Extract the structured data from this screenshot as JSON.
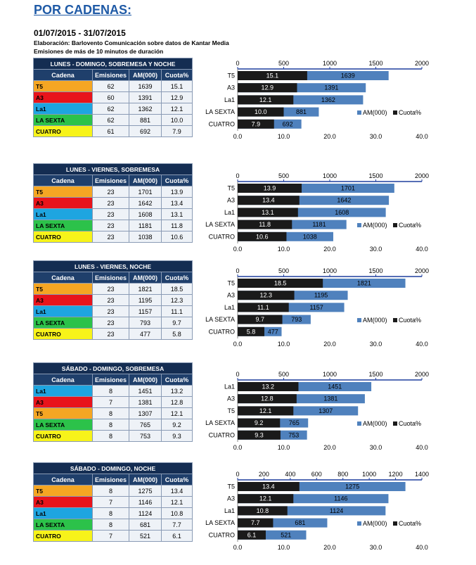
{
  "title": "POR CADENAS:",
  "date_range": "01/07/2015 - 31/07/2015",
  "credit": "Elaboración: Barlovento Comunicación sobre datos de Kantar Media",
  "subnote": "Emisiones de más de 10 minutos de duración",
  "table_headers": [
    "Cadena",
    "Emisiones",
    "AM(000)",
    "Cuota%"
  ],
  "colors": {
    "T5": "#f5a623",
    "A3": "#e8141b",
    "La1": "#1ea5e0",
    "LA SEXTA": "#2cc24a",
    "CUATRO": "#f7f31a",
    "bar_am": "#4f81bd",
    "bar_cuota": "#1a1a1a",
    "header_dark": "#142d52",
    "header": "#1f3f6b"
  },
  "sections": [
    {
      "title": "LUNES - DOMINGO, SOBREMESA Y NOCHE",
      "rows": [
        {
          "cadena": "T5",
          "emisiones": "62",
          "am": "1639",
          "cuota": "15.1"
        },
        {
          "cadena": "A3",
          "emisiones": "60",
          "am": "1391",
          "cuota": "12.9"
        },
        {
          "cadena": "La1",
          "emisiones": "62",
          "am": "1362",
          "cuota": "12.1"
        },
        {
          "cadena": "LA SEXTA",
          "emisiones": "62",
          "am": "881",
          "cuota": "10.0"
        },
        {
          "cadena": "CUATRO",
          "emisiones": "61",
          "am": "692",
          "cuota": "7.9"
        }
      ]
    },
    {
      "title": "LUNES - VIERNES, SOBREMESA",
      "rows": [
        {
          "cadena": "T5",
          "emisiones": "23",
          "am": "1701",
          "cuota": "13.9"
        },
        {
          "cadena": "A3",
          "emisiones": "23",
          "am": "1642",
          "cuota": "13.4"
        },
        {
          "cadena": "La1",
          "emisiones": "23",
          "am": "1608",
          "cuota": "13.1"
        },
        {
          "cadena": "LA SEXTA",
          "emisiones": "23",
          "am": "1181",
          "cuota": "11.8"
        },
        {
          "cadena": "CUATRO",
          "emisiones": "23",
          "am": "1038",
          "cuota": "10.6"
        }
      ]
    },
    {
      "title": "LUNES - VIERNES, NOCHE",
      "rows": [
        {
          "cadena": "T5",
          "emisiones": "23",
          "am": "1821",
          "cuota": "18.5"
        },
        {
          "cadena": "A3",
          "emisiones": "23",
          "am": "1195",
          "cuota": "12.3"
        },
        {
          "cadena": "La1",
          "emisiones": "23",
          "am": "1157",
          "cuota": "11.1"
        },
        {
          "cadena": "LA SEXTA",
          "emisiones": "23",
          "am": "793",
          "cuota": "9.7"
        },
        {
          "cadena": "CUATRO",
          "emisiones": "23",
          "am": "477",
          "cuota": "5.8"
        }
      ]
    },
    {
      "title": "SÁBADO - DOMINGO, SOBREMESA",
      "rows": [
        {
          "cadena": "La1",
          "emisiones": "8",
          "am": "1451",
          "cuota": "13.2"
        },
        {
          "cadena": "A3",
          "emisiones": "7",
          "am": "1381",
          "cuota": "12.8"
        },
        {
          "cadena": "T5",
          "emisiones": "8",
          "am": "1307",
          "cuota": "12.1"
        },
        {
          "cadena": "LA SEXTA",
          "emisiones": "8",
          "am": "765",
          "cuota": "9.2"
        },
        {
          "cadena": "CUATRO",
          "emisiones": "8",
          "am": "753",
          "cuota": "9.3"
        }
      ]
    },
    {
      "title": "SÁBADO - DOMINGO, NOCHE",
      "rows": [
        {
          "cadena": "T5",
          "emisiones": "8",
          "am": "1275",
          "cuota": "13.4"
        },
        {
          "cadena": "A3",
          "emisiones": "7",
          "am": "1146",
          "cuota": "12.1"
        },
        {
          "cadena": "La1",
          "emisiones": "8",
          "am": "1124",
          "cuota": "10.8"
        },
        {
          "cadena": "LA SEXTA",
          "emisiones": "8",
          "am": "681",
          "cuota": "7.7"
        },
        {
          "cadena": "CUATRO",
          "emisiones": "7",
          "am": "521",
          "cuota": "6.1"
        }
      ]
    }
  ],
  "chart_data": [
    {
      "type": "bar",
      "title": "LUNES - DOMINGO, SOBREMESA Y NOCHE",
      "categories": [
        "T5",
        "A3",
        "La1",
        "LA SEXTA",
        "CUATRO"
      ],
      "series": [
        {
          "name": "AM(000)",
          "axis": "top",
          "values": [
            1639,
            1391,
            1362,
            881,
            692
          ]
        },
        {
          "name": "Cuota%",
          "axis": "bottom",
          "values": [
            15.1,
            12.9,
            12.1,
            10.0,
            7.9
          ]
        }
      ],
      "top_axis": {
        "range": [
          0,
          2000
        ],
        "ticks": [
          "0",
          "500",
          "1000",
          "1500",
          "2000"
        ]
      },
      "bottom_axis": {
        "range": [
          0,
          40
        ],
        "ticks": [
          "0.0",
          "10.0",
          "20.0",
          "30.0",
          "40.0"
        ]
      },
      "legend": "bottom-right"
    },
    {
      "type": "bar",
      "title": "LUNES - VIERNES, SOBREMESA",
      "categories": [
        "T5",
        "A3",
        "La1",
        "LA SEXTA",
        "CUATRO"
      ],
      "series": [
        {
          "name": "AM(000)",
          "axis": "top",
          "values": [
            1701,
            1642,
            1608,
            1181,
            1038
          ]
        },
        {
          "name": "Cuota%",
          "axis": "bottom",
          "values": [
            13.9,
            13.4,
            13.1,
            11.8,
            10.6
          ]
        }
      ],
      "top_axis": {
        "range": [
          0,
          2000
        ],
        "ticks": [
          "0",
          "500",
          "1000",
          "1500",
          "2000"
        ]
      },
      "bottom_axis": {
        "range": [
          0,
          40
        ],
        "ticks": [
          "0.0",
          "10.0",
          "20.0",
          "30.0",
          "40.0"
        ]
      },
      "legend": "bottom-right"
    },
    {
      "type": "bar",
      "title": "LUNES - VIERNES, NOCHE",
      "categories": [
        "T5",
        "A3",
        "La1",
        "LA SEXTA",
        "CUATRO"
      ],
      "series": [
        {
          "name": "AM(000)",
          "axis": "top",
          "values": [
            1821,
            1195,
            1157,
            793,
            477
          ]
        },
        {
          "name": "Cuota%",
          "axis": "bottom",
          "values": [
            18.5,
            12.3,
            11.1,
            9.7,
            5.8
          ]
        }
      ],
      "top_axis": {
        "range": [
          0,
          2000
        ],
        "ticks": [
          "0",
          "500",
          "1000",
          "1500",
          "2000"
        ]
      },
      "bottom_axis": {
        "range": [
          0,
          40
        ],
        "ticks": [
          "0.0",
          "10.0",
          "20.0",
          "30.0",
          "40.0"
        ]
      },
      "legend": "bottom-right"
    },
    {
      "type": "bar",
      "title": "SÁBADO - DOMINGO, SOBREMESA",
      "categories": [
        "La1",
        "A3",
        "T5",
        "LA SEXTA",
        "CUATRO"
      ],
      "series": [
        {
          "name": "AM(000)",
          "axis": "top",
          "values": [
            1451,
            1381,
            1307,
            765,
            753
          ]
        },
        {
          "name": "Cuota%",
          "axis": "bottom",
          "values": [
            13.2,
            12.8,
            12.1,
            9.2,
            9.3
          ]
        }
      ],
      "top_axis": {
        "range": [
          0,
          2000
        ],
        "ticks": [
          "0",
          "500",
          "1000",
          "1500",
          "2000"
        ]
      },
      "bottom_axis": {
        "range": [
          0,
          40
        ],
        "ticks": [
          "0.0",
          "10.0",
          "20.0",
          "30.0",
          "40.0"
        ]
      },
      "legend": "bottom-right"
    },
    {
      "type": "bar",
      "title": "SÁBADO - DOMINGO, NOCHE",
      "categories": [
        "T5",
        "A3",
        "La1",
        "LA SEXTA",
        "CUATRO"
      ],
      "series": [
        {
          "name": "AM(000)",
          "axis": "top",
          "values": [
            1275,
            1146,
            1124,
            681,
            521
          ]
        },
        {
          "name": "Cuota%",
          "axis": "bottom",
          "values": [
            13.4,
            12.1,
            10.8,
            7.7,
            6.1
          ]
        }
      ],
      "top_axis": {
        "range": [
          0,
          1400
        ],
        "ticks": [
          "0",
          "200",
          "400",
          "600",
          "800",
          "1000",
          "1200",
          "1400"
        ]
      },
      "bottom_axis": {
        "range": [
          0,
          40
        ],
        "ticks": [
          "0.0",
          "10.0",
          "20.0",
          "30.0",
          "40.0"
        ]
      },
      "legend": "bottom-right"
    }
  ]
}
